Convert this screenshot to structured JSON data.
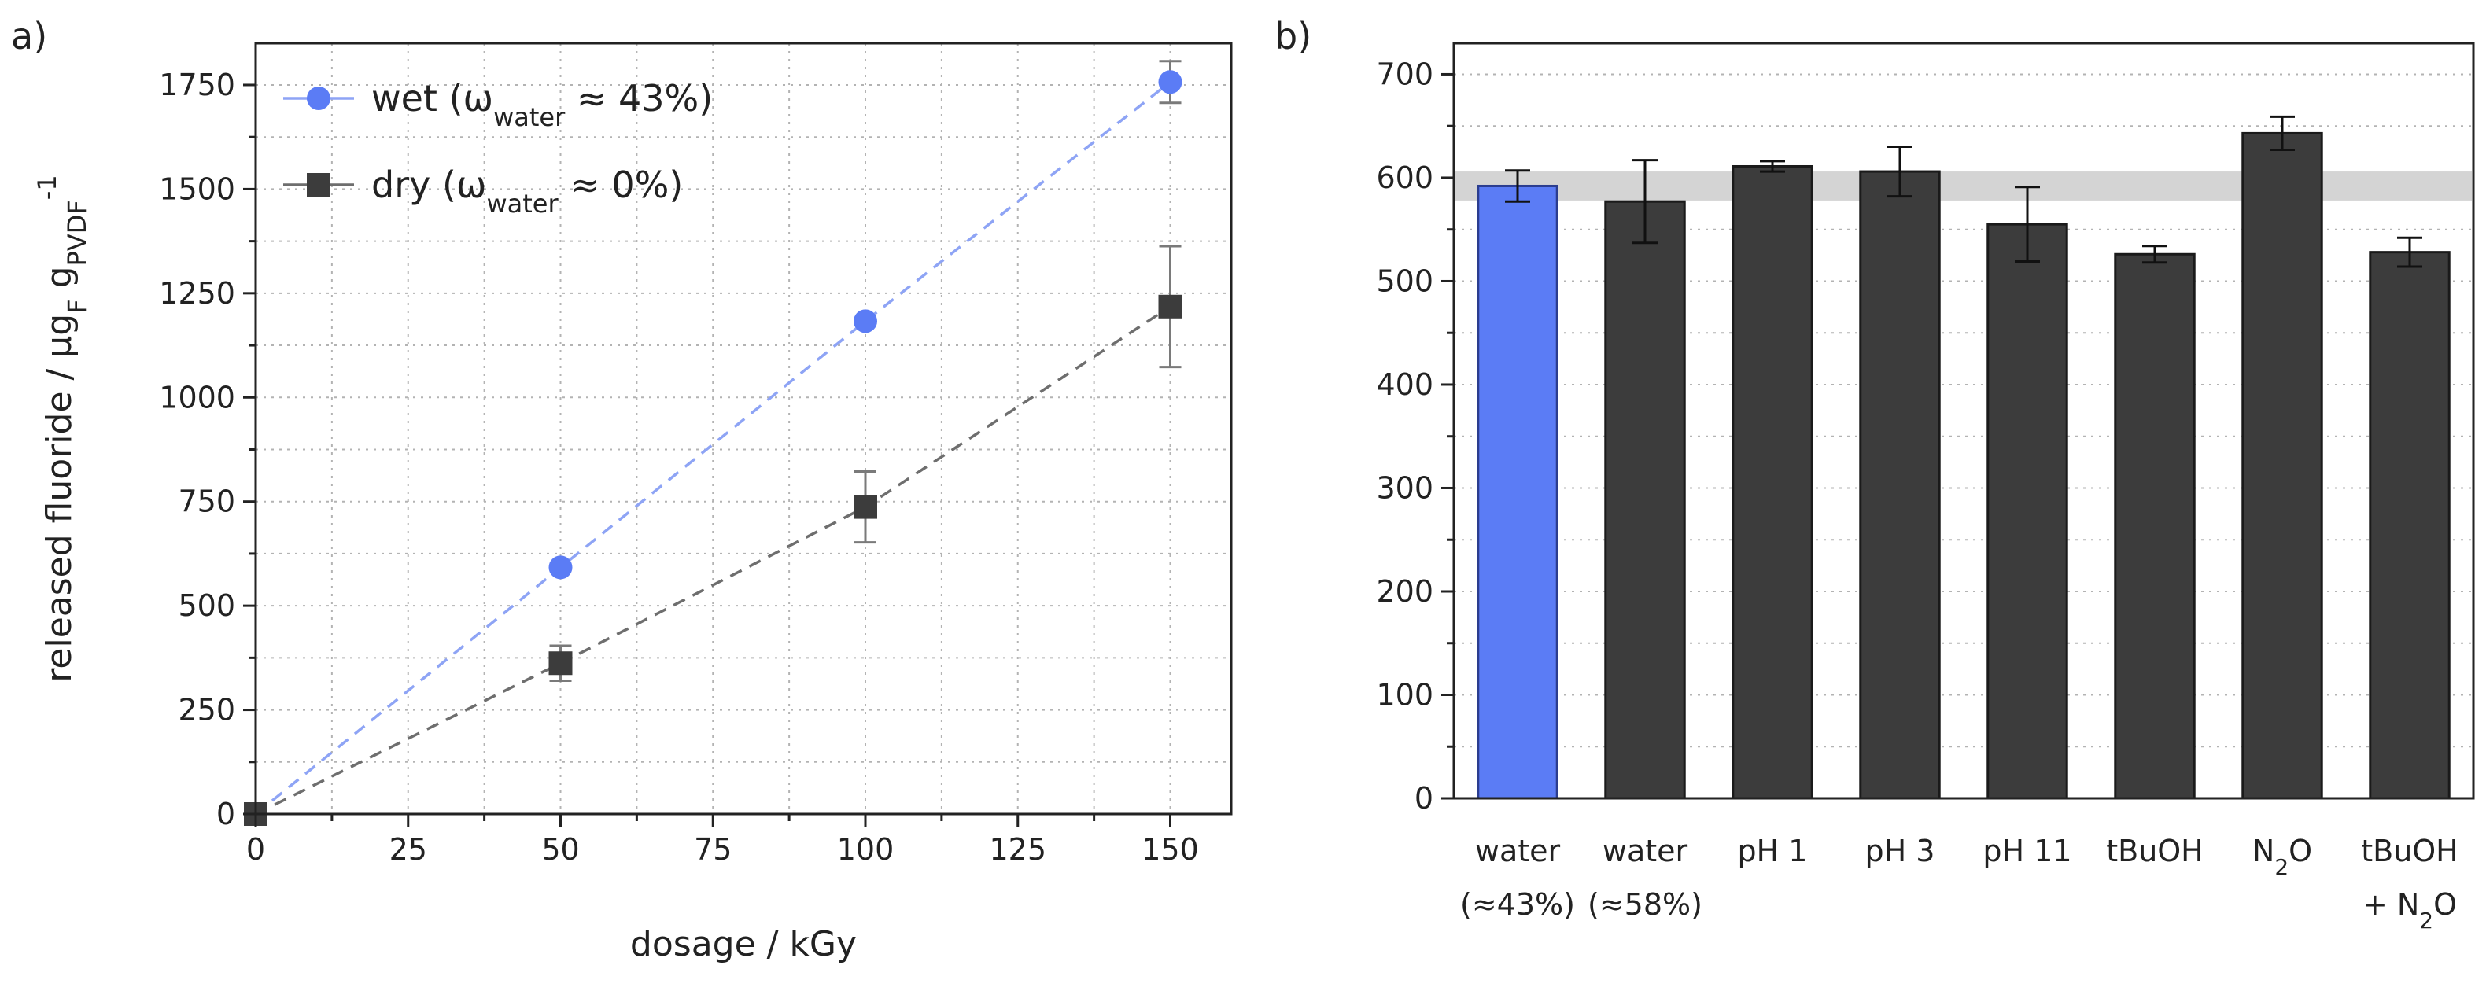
{
  "chart_data": [
    {
      "panel_label": "a)",
      "type": "scatter",
      "xlabel": "dosage / kGy",
      "ylabel": {
        "prefix": "released fluoride / µg",
        "sub1": "F",
        "mid": " g",
        "sub2": "PVDF",
        "sup": "-1"
      },
      "xlim": [
        0,
        160
      ],
      "ylim": [
        0,
        1850
      ],
      "xticks": [
        "0",
        "25",
        "50",
        "75",
        "100",
        "125",
        "150"
      ],
      "yticks": [
        "0",
        "250",
        "500",
        "750",
        "1000",
        "1250",
        "1500",
        "1750"
      ],
      "grid": true,
      "legend_position": "top-left",
      "series": [
        {
          "name": "wet",
          "legend": {
            "main": "wet (ω",
            "sub": "water",
            "rest": " ≈ 43%)"
          },
          "marker": "circle",
          "color": "#5b7cf5",
          "x": [
            0,
            50,
            100,
            150
          ],
          "y": [
            0,
            592,
            1183,
            1757
          ],
          "error": [
            0,
            0,
            0,
            50
          ],
          "fit_line": "dashed"
        },
        {
          "name": "dry",
          "legend": {
            "main": "dry (ω",
            "sub": "water",
            "rest": " ≈ 0%)"
          },
          "marker": "square",
          "color": "#3c3c3c",
          "x": [
            0,
            50,
            100,
            150
          ],
          "y": [
            0,
            362,
            737,
            1218
          ],
          "error": [
            0,
            42,
            85,
            145
          ],
          "fit_line": "dashed"
        }
      ]
    },
    {
      "panel_label": "b)",
      "type": "bar",
      "ylim": [
        0,
        730
      ],
      "yticks": [
        "0",
        "100",
        "200",
        "300",
        "400",
        "500",
        "600",
        "700"
      ],
      "grid": true,
      "reference_band": {
        "low": 578,
        "high": 606,
        "color": "#d4d4d4"
      },
      "categories": [
        {
          "line1": "water",
          "line2": "(≈43%)"
        },
        {
          "line1": "water",
          "line2": "(≈58%)"
        },
        {
          "line1": "pH 1",
          "line2": ""
        },
        {
          "line1": "pH 3",
          "line2": ""
        },
        {
          "line1": "pH 11",
          "line2": ""
        },
        {
          "line1": "tBuOH",
          "line2": ""
        },
        {
          "line1": {
            "main": "N",
            "sub": "2",
            "rest": "O"
          },
          "line2": ""
        },
        {
          "line1": "tBuOH",
          "line2": {
            "main": "+ N",
            "sub": "2",
            "rest": "O"
          }
        }
      ],
      "values": [
        592,
        577,
        611,
        606,
        555,
        526,
        643,
        528
      ],
      "errors": [
        15,
        40,
        5,
        24,
        36,
        8,
        16,
        14
      ],
      "bar_colors": [
        "#5b7cf5",
        "#3c3c3c",
        "#3c3c3c",
        "#3c3c3c",
        "#3c3c3c",
        "#3c3c3c",
        "#3c3c3c",
        "#3c3c3c"
      ],
      "bar_edge_colors": [
        "#2b3d8f",
        "#1a1a1a",
        "#1a1a1a",
        "#1a1a1a",
        "#1a1a1a",
        "#1a1a1a",
        "#1a1a1a",
        "#1a1a1a"
      ]
    }
  ]
}
